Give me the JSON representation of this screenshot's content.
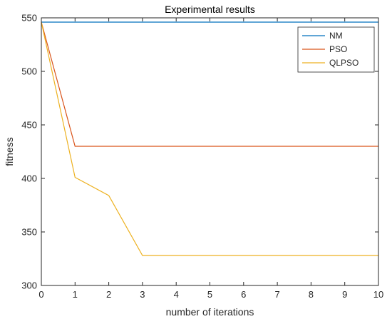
{
  "chart_data": {
    "type": "line",
    "title": "Experimental results",
    "xlabel": "number of iterations",
    "ylabel": "fitness",
    "xlim": [
      0,
      10
    ],
    "ylim": [
      300,
      550
    ],
    "xticks": [
      0,
      1,
      2,
      3,
      4,
      5,
      6,
      7,
      8,
      9,
      10
    ],
    "yticks": [
      300,
      350,
      400,
      450,
      500,
      550
    ],
    "legend_position": "top-right",
    "grid": false,
    "series": [
      {
        "name": "NM",
        "color": "#0072BD",
        "x": [
          0,
          1,
          2,
          3,
          4,
          5,
          6,
          7,
          8,
          9,
          10
        ],
        "y": [
          546,
          546,
          546,
          546,
          546,
          546,
          546,
          546,
          546,
          546,
          546
        ]
      },
      {
        "name": "PSO",
        "color": "#D95319",
        "x": [
          0,
          1,
          2,
          3,
          4,
          5,
          6,
          7,
          8,
          9,
          10
        ],
        "y": [
          546,
          430,
          430,
          430,
          430,
          430,
          430,
          430,
          430,
          430,
          430
        ]
      },
      {
        "name": "QLPSO",
        "color": "#EDB120",
        "x": [
          0,
          1,
          2,
          3,
          4,
          5,
          6,
          7,
          8,
          9,
          10
        ],
        "y": [
          546,
          401,
          384,
          328,
          328,
          328,
          328,
          328,
          328,
          328,
          328
        ]
      }
    ]
  }
}
